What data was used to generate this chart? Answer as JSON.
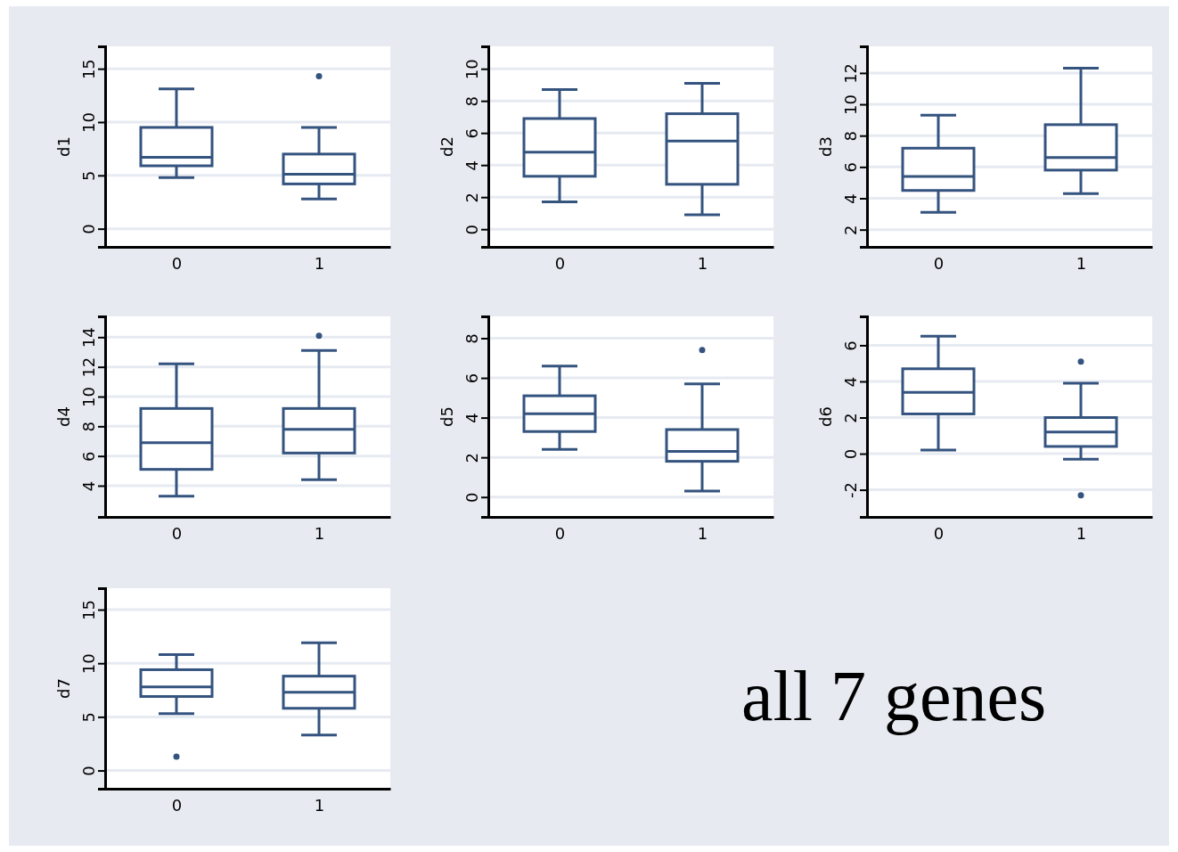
{
  "chart_data": [
    {
      "type": "box",
      "ylabel": "d1",
      "categories": [
        "0",
        "1"
      ],
      "color": "#34537f",
      "grid": "y",
      "ylim": [
        -1.7,
        17.1
      ],
      "yticks": [
        0,
        5,
        10,
        15
      ],
      "boxes": [
        {
          "low": 4.8,
          "q1": 5.9,
          "median": 6.7,
          "q3": 9.5,
          "high": 13.1
        },
        {
          "low": 2.8,
          "q1": 4.2,
          "median": 5.1,
          "q3": 7.0,
          "high": 9.5,
          "outliers": [
            14.3
          ]
        }
      ]
    },
    {
      "type": "box",
      "ylabel": "d2",
      "categories": [
        "0",
        "1"
      ],
      "color": "#34537f",
      "grid": "y",
      "ylim": [
        -1.1,
        11.4
      ],
      "yticks": [
        0,
        2,
        4,
        6,
        8,
        10
      ],
      "boxes": [
        {
          "low": 1.7,
          "q1": 3.3,
          "median": 4.8,
          "q3": 6.9,
          "high": 8.7
        },
        {
          "low": 0.9,
          "q1": 2.8,
          "median": 5.5,
          "q3": 7.2,
          "high": 9.1
        }
      ]
    },
    {
      "type": "box",
      "ylabel": "d3",
      "categories": [
        "0",
        "1"
      ],
      "color": "#34537f",
      "grid": "y",
      "ylim": [
        0.9,
        13.7
      ],
      "yticks": [
        2,
        4,
        6,
        8,
        10,
        12
      ],
      "boxes": [
        {
          "low": 3.1,
          "q1": 4.5,
          "median": 5.4,
          "q3": 7.2,
          "high": 9.3
        },
        {
          "low": 4.3,
          "q1": 5.8,
          "median": 6.6,
          "q3": 8.7,
          "high": 12.3
        }
      ]
    },
    {
      "type": "box",
      "ylabel": "d4",
      "categories": [
        "0",
        "1"
      ],
      "color": "#34537f",
      "grid": "y",
      "ylim": [
        1.9,
        15.4
      ],
      "yticks": [
        4,
        6,
        8,
        10,
        12,
        14
      ],
      "boxes": [
        {
          "low": 3.3,
          "q1": 5.1,
          "median": 6.9,
          "q3": 9.2,
          "high": 12.2
        },
        {
          "low": 4.4,
          "q1": 6.2,
          "median": 7.8,
          "q3": 9.2,
          "high": 13.1,
          "outliers": [
            14.1
          ]
        }
      ]
    },
    {
      "type": "box",
      "ylabel": "d5",
      "categories": [
        "0",
        "1"
      ],
      "color": "#34537f",
      "grid": "y",
      "ylim": [
        -1.0,
        9.1
      ],
      "yticks": [
        0,
        2,
        4,
        6,
        8
      ],
      "boxes": [
        {
          "low": 2.4,
          "q1": 3.3,
          "median": 4.2,
          "q3": 5.1,
          "high": 6.6
        },
        {
          "low": 0.3,
          "q1": 1.8,
          "median": 2.3,
          "q3": 3.4,
          "high": 5.7,
          "outliers": [
            7.4
          ]
        }
      ]
    },
    {
      "type": "box",
      "ylabel": "d6",
      "categories": [
        "0",
        "1"
      ],
      "color": "#34537f",
      "grid": "y",
      "ylim": [
        -3.5,
        7.6
      ],
      "yticks": [
        -2,
        0,
        2,
        4,
        6
      ],
      "boxes": [
        {
          "low": 0.2,
          "q1": 2.2,
          "median": 3.4,
          "q3": 4.7,
          "high": 6.5
        },
        {
          "low": -0.3,
          "q1": 0.4,
          "median": 1.2,
          "q3": 2.0,
          "high": 3.9,
          "outliers": [
            5.1,
            -2.3
          ]
        }
      ]
    },
    {
      "type": "box",
      "ylabel": "d7",
      "categories": [
        "0",
        "1"
      ],
      "color": "#34537f",
      "grid": "y",
      "ylim": [
        -1.7,
        17.0
      ],
      "yticks": [
        0,
        5,
        10,
        15
      ],
      "boxes": [
        {
          "low": 5.3,
          "q1": 6.9,
          "median": 7.8,
          "q3": 9.4,
          "high": 10.8,
          "outliers": [
            1.3
          ]
        },
        {
          "low": 3.3,
          "q1": 5.8,
          "median": 7.3,
          "q3": 8.8,
          "high": 11.9
        }
      ]
    },
    {
      "type": "other",
      "annotations": [
        "all 7 genes"
      ]
    }
  ]
}
